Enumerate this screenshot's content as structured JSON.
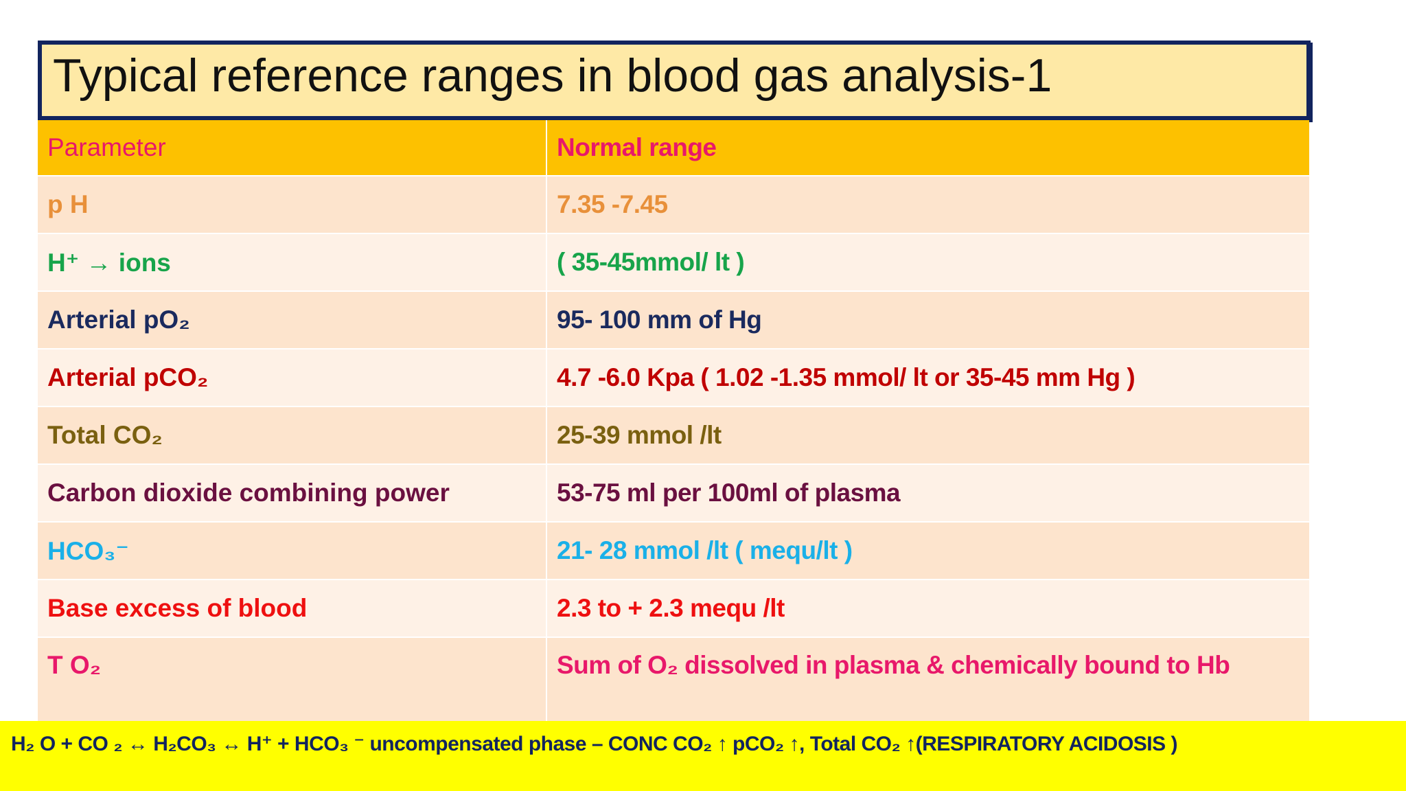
{
  "title": "Typical reference ranges in blood gas analysis-1",
  "table": {
    "header": [
      "Parameter",
      "Normal range"
    ],
    "rows": [
      [
        "p H",
        "7.35 -7.45"
      ],
      [
        "H⁺ → ions",
        "( 35-45mmol/ lt )"
      ],
      [
        "Arterial pO₂",
        "95- 100  mm of Hg"
      ],
      [
        "Arterial pCO₂",
        "4.7 -6.0 Kpa ( 1.02 -1.35 mmol/ lt or 35-45 mm Hg )"
      ],
      [
        "Total CO₂",
        "25-39 mmol /lt"
      ],
      [
        "Carbon dioxide combining power",
        "53-75 ml per 100ml of plasma"
      ],
      [
        "HCO₃⁻",
        "21- 28 mmol /lt  ( mequ/lt )"
      ],
      [
        "Base excess of blood",
        "2.3 to + 2.3 mequ /lt"
      ],
      [
        "T O₂",
        "Sum of O₂ dissolved in plasma & chemically bound to Hb"
      ]
    ]
  },
  "footer": "H₂ O + CO ₂ ↔ H₂CO₃  ↔ H⁺ +  HCO₃ ⁻ uncompensated phase – CONC CO₂ ↑ pCO₂ ↑, Total CO₂ ↑(RESPIRATORY ACIDOSIS )"
}
